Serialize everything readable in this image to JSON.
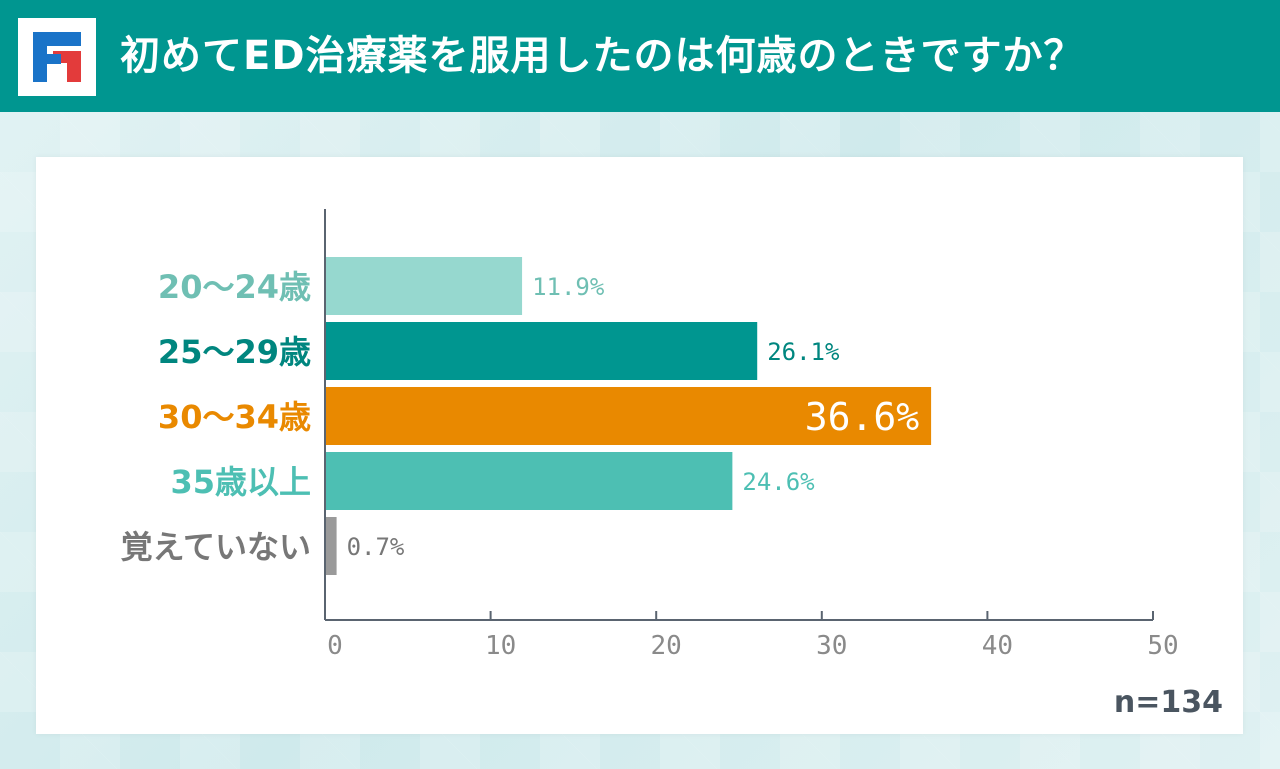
{
  "header": {
    "title": "初めてED治療薬を服用したのは何歳のときですか？",
    "logo_icon": "brand-logo-icon"
  },
  "colors": {
    "header_bg": "#009690",
    "axis": "#5a6470",
    "tick_text": "#8a8a8a"
  },
  "sample_size": "n=134",
  "chart_data": {
    "type": "bar",
    "orientation": "horizontal",
    "title": "初めてED治療薬を服用したのは何歳のときですか？",
    "xlabel": "",
    "ylabel": "",
    "xlim": [
      0,
      50
    ],
    "x_ticks": [
      "0",
      "10",
      "20",
      "30",
      "40",
      "50"
    ],
    "grid": false,
    "categories": [
      "20～24歳",
      "25～29歳",
      "30～34歳",
      "35歳以上",
      "覚えていない"
    ],
    "values": [
      11.9,
      26.1,
      36.6,
      24.6,
      0.7
    ],
    "value_labels": [
      "11.9%",
      "26.1%",
      "36.6%",
      "24.6%",
      "0.7%"
    ],
    "bar_colors": [
      "#96d8cf",
      "#009690",
      "#e98900",
      "#4dbfb3",
      "#9a9a9a"
    ],
    "label_colors": [
      "#6fbfb3",
      "#00867f",
      "#e98900",
      "#4dbfb3",
      "#777777"
    ],
    "highlight_index": 2
  }
}
